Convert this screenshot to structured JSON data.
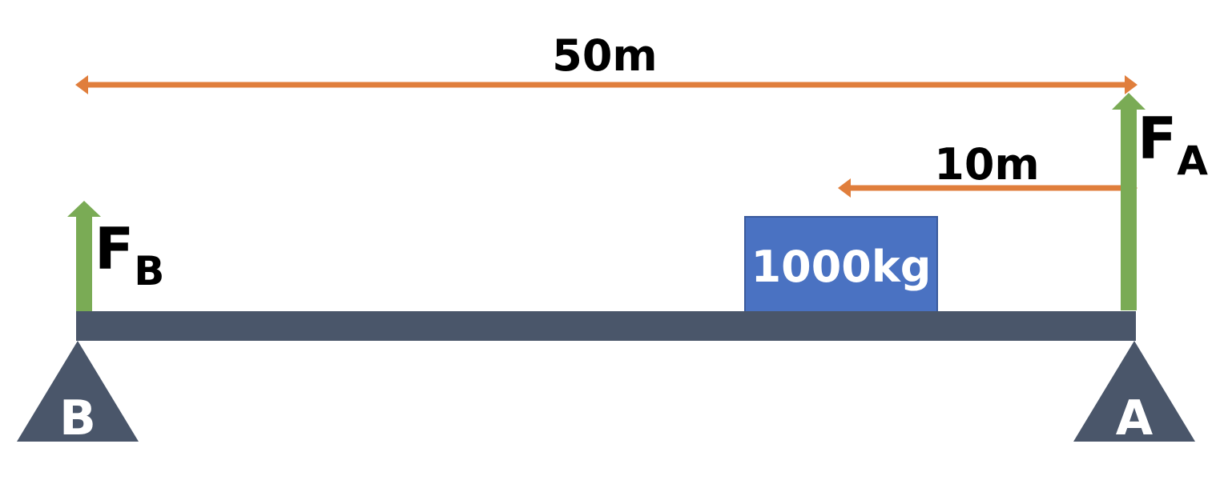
{
  "dimensions": {
    "total_span_label": "50m",
    "load_offset_label": "10m"
  },
  "load": {
    "label": "1000kg"
  },
  "forces": {
    "left": {
      "main": "F",
      "sub": "B"
    },
    "right": {
      "main": "F",
      "sub": "A"
    }
  },
  "supports": {
    "left_label": "B",
    "right_label": "A"
  },
  "colors": {
    "beam": "#4a566a",
    "support": "#4a566a",
    "load_box": "#4a72c2",
    "force_arrow": "#7aab55",
    "dimension_arrow": "#e07e3c",
    "text": "#000000"
  }
}
